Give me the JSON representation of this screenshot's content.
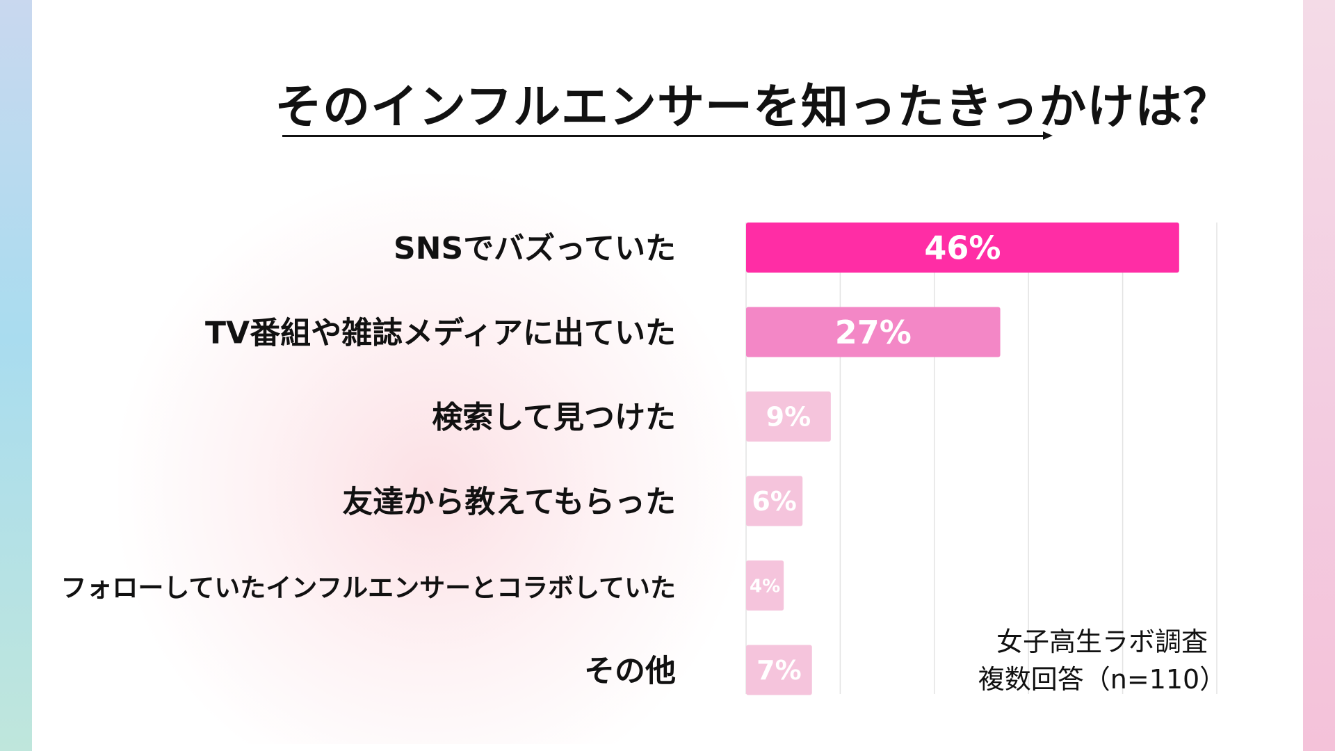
{
  "page": {
    "title": "そのインフルエンサーを知ったきっかけは？",
    "source_line1": "女子高生ラボ調査",
    "source_line2": "複数回答（n=110）"
  },
  "chart_data": {
    "type": "bar",
    "orientation": "horizontal",
    "title": "そのインフルエンサーを知ったきっかけは？",
    "categories": [
      "SNSでバズっていた",
      "TV番組や雑誌メディアに出ていた",
      "検索して見つけた",
      "友達から教えてもらった",
      "フォローしていたインフルエンサーとコラボしていた",
      "その他"
    ],
    "values": [
      46,
      27,
      9,
      6,
      4,
      7
    ],
    "value_labels": [
      "46%",
      "27%",
      "9%",
      "6%",
      "4%",
      "7%"
    ],
    "unit": "%",
    "xlim": [
      0,
      50
    ],
    "grid": true,
    "bar_colors": [
      "#ff2da5",
      "#f387c6",
      "#f5c4dc",
      "#f5c4dc",
      "#f5c4dc",
      "#f5c4dc"
    ],
    "grid_color": "#e3e3e3",
    "label_color": "#ffffff"
  }
}
